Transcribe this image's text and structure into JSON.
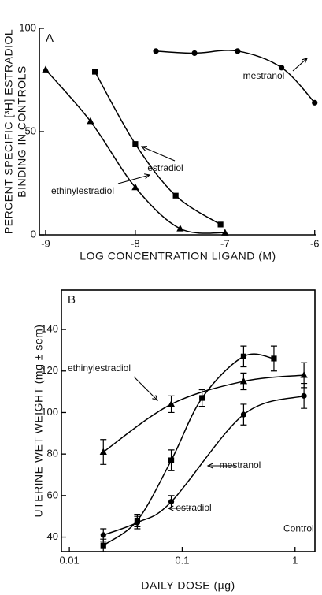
{
  "chart_data": [
    {
      "type": "line",
      "panel": "A",
      "xscale": "linear",
      "ylabel": [
        "PERCENT SPECIFIC [³H] ESTRADIOL",
        "BINDING IN CONTROLS"
      ],
      "xlabel": "LOG CONCENTRATION LIGAND (M)",
      "xlim": [
        -9.07,
        -5.98
      ],
      "xticks": [
        -9,
        -8,
        -7,
        -6
      ],
      "ylim": [
        0,
        100
      ],
      "yticks": [
        0,
        50,
        100
      ],
      "series": [
        {
          "name": "mestranol",
          "color": "#000000",
          "marker": "circle",
          "x": [
            -7.77,
            -7.34,
            -6.86,
            -6.37,
            -6.0
          ],
          "values": [
            89,
            88,
            89,
            81,
            64
          ]
        },
        {
          "name": "estradiol",
          "color": "#000000",
          "marker": "square",
          "x": [
            -8.45,
            -8.0,
            -7.55,
            -7.05
          ],
          "values": [
            79,
            44,
            19,
            5
          ]
        },
        {
          "name": "ethinylestradiol",
          "color": "#000000",
          "marker": "triangle",
          "x": [
            -9.0,
            -8.5,
            -8.0,
            -7.5,
            -7.0
          ],
          "values": [
            80,
            55,
            23,
            3,
            1
          ]
        }
      ]
    },
    {
      "type": "line",
      "panel": "B",
      "xscale": "log",
      "ylabel": "UTERINE WET WEIGHT (mg ± sem)",
      "xlabel": "DAILY DOSE (µg)",
      "xlim": [
        0.0085,
        1.5
      ],
      "xticks": [
        0.01,
        0.1,
        1
      ],
      "ylim": [
        33,
        159
      ],
      "yticks": [
        40,
        60,
        80,
        100,
        120,
        140
      ],
      "reference_line": {
        "value": 40,
        "label": "Control"
      },
      "series": [
        {
          "name": "ethinylestradiol",
          "color": "#000000",
          "marker": "triangle",
          "x": [
            0.02,
            0.08,
            0.35,
            1.2
          ],
          "values": [
            81,
            104,
            115,
            118
          ],
          "errors": [
            6,
            4,
            4,
            6
          ]
        },
        {
          "name": "mestranol",
          "color": "#000000",
          "marker": "circle",
          "x": [
            0.02,
            0.04,
            0.08,
            0.35,
            1.2
          ],
          "values": [
            41,
            47,
            57,
            99,
            108
          ],
          "errors": [
            3,
            3,
            3,
            5,
            6
          ]
        },
        {
          "name": "estradiol",
          "color": "#000000",
          "marker": "square",
          "x": [
            0.02,
            0.04,
            0.08,
            0.15,
            0.35,
            0.65
          ],
          "values": [
            36,
            48,
            77,
            107,
            127,
            126
          ],
          "errors": [
            3,
            3,
            5,
            4,
            5,
            6
          ]
        }
      ]
    }
  ]
}
